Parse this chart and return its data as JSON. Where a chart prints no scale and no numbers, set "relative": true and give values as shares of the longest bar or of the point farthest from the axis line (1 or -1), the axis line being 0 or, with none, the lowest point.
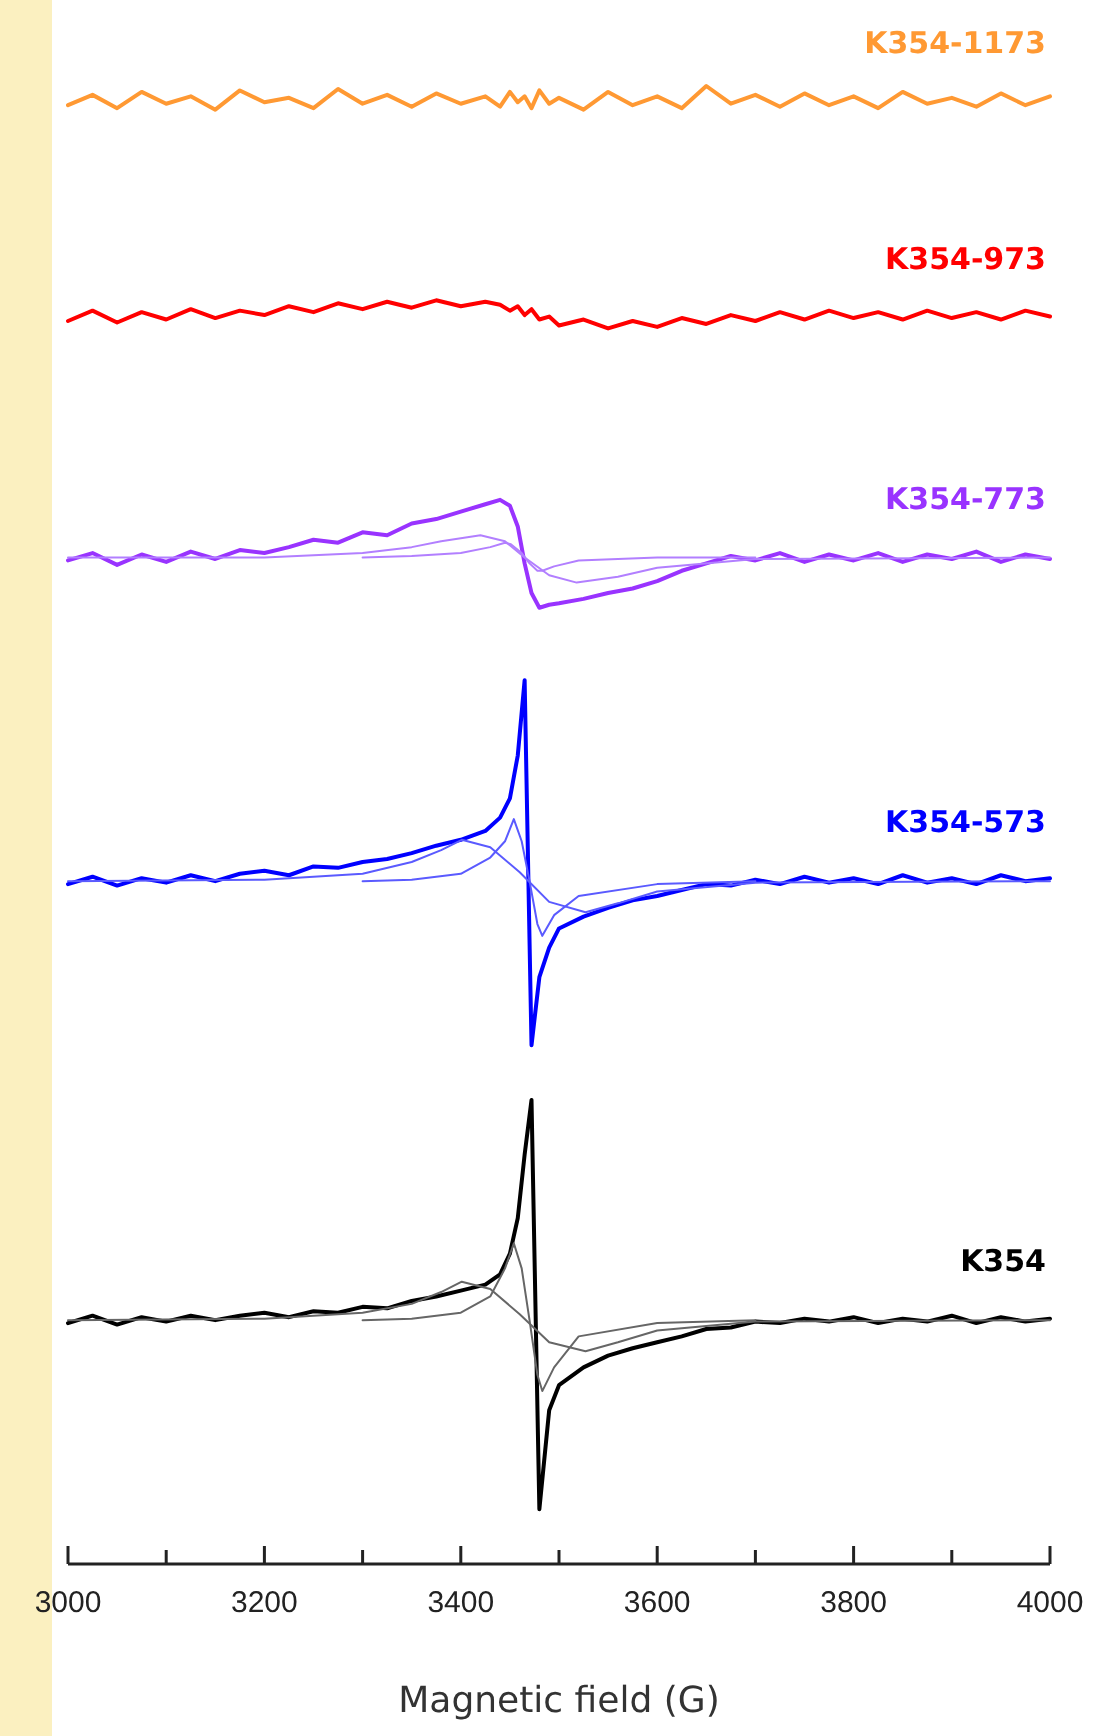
{
  "chart_data": {
    "type": "line",
    "relative": true,
    "xlabel": "Magnetic field (G)",
    "xlim": [
      3000,
      4000
    ],
    "xticks": [
      3000,
      {
        "value": 3100,
        "label": null
      },
      3200,
      {
        "value": 3300,
        "label": null
      },
      3400,
      {
        "value": 3500,
        "label": null
      },
      3600,
      {
        "value": 3700,
        "label": null
      },
      3800,
      {
        "value": 3900,
        "label": null
      },
      4000
    ],
    "x": [
      3000,
      3025,
      3050,
      3075,
      3100,
      3125,
      3150,
      3175,
      3200,
      3225,
      3250,
      3275,
      3300,
      3325,
      3350,
      3375,
      3400,
      3425,
      3440,
      3450,
      3458,
      3465,
      3472,
      3480,
      3490,
      3500,
      3525,
      3550,
      3575,
      3600,
      3625,
      3650,
      3675,
      3700,
      3725,
      3750,
      3775,
      3800,
      3825,
      3850,
      3875,
      3900,
      3925,
      3950,
      3975,
      4000
    ],
    "line_style": "solid",
    "marker": "none",
    "series": [
      {
        "name": "K354-1173",
        "color": "#ff9933",
        "values": [
          0.987,
          0.994,
          0.985,
          0.996,
          0.988,
          0.993,
          0.984,
          0.997,
          0.989,
          0.992,
          0.985,
          0.998,
          0.988,
          0.994,
          0.986,
          0.995,
          0.988,
          0.993,
          0.986,
          0.996,
          0.989,
          0.993,
          0.985,
          0.997,
          0.988,
          0.992,
          0.984,
          0.996,
          0.987,
          0.993,
          0.985,
          1.0,
          0.988,
          0.994,
          0.986,
          0.995,
          0.987,
          0.993,
          0.985,
          0.996,
          0.988,
          0.992,
          0.986,
          0.995,
          0.987,
          0.993
        ]
      },
      {
        "name": "K354-973",
        "color": "#ff0000",
        "values": [
          0.841,
          0.848,
          0.84,
          0.847,
          0.842,
          0.849,
          0.843,
          0.848,
          0.845,
          0.851,
          0.847,
          0.853,
          0.849,
          0.854,
          0.85,
          0.855,
          0.851,
          0.854,
          0.852,
          0.848,
          0.851,
          0.845,
          0.849,
          0.842,
          0.844,
          0.838,
          0.842,
          0.836,
          0.841,
          0.837,
          0.843,
          0.839,
          0.845,
          0.841,
          0.847,
          0.842,
          0.848,
          0.843,
          0.847,
          0.842,
          0.848,
          0.843,
          0.847,
          0.842,
          0.848,
          0.844
        ]
      },
      {
        "name": "K354-773",
        "color": "#9933ff",
        "values": [
          0.679,
          0.684,
          0.676,
          0.683,
          0.678,
          0.685,
          0.68,
          0.686,
          0.684,
          0.688,
          0.693,
          0.691,
          0.698,
          0.696,
          0.704,
          0.707,
          0.712,
          0.717,
          0.72,
          0.716,
          0.702,
          0.677,
          0.657,
          0.647,
          0.649,
          0.65,
          0.653,
          0.657,
          0.66,
          0.665,
          0.672,
          0.677,
          0.682,
          0.679,
          0.684,
          0.678,
          0.683,
          0.679,
          0.684,
          0.678,
          0.683,
          0.68,
          0.685,
          0.678,
          0.683,
          0.68
        ]
      },
      {
        "color": "#b27fff",
        "x": [
          3000,
          3200,
          3300,
          3350,
          3380,
          3420,
          3445,
          3465,
          3490,
          3518,
          3560,
          3600,
          3700,
          4000
        ],
        "values": [
          0.681,
          0.681,
          0.684,
          0.688,
          0.692,
          0.696,
          0.692,
          0.681,
          0.669,
          0.664,
          0.668,
          0.674,
          0.68,
          0.681
        ]
      },
      {
        "color": "#b27fff",
        "x": [
          3300,
          3350,
          3400,
          3430,
          3445,
          3451,
          3462,
          3470,
          3478,
          3483,
          3495,
          3520,
          3600,
          3700
        ],
        "values": [
          0.681,
          0.682,
          0.684,
          0.688,
          0.691,
          0.69,
          0.684,
          0.677,
          0.672,
          0.672,
          0.675,
          0.679,
          0.681,
          0.681
        ]
      },
      {
        "name": "K354-573",
        "color": "#0000ff",
        "values": [
          0.46,
          0.465,
          0.459,
          0.464,
          0.461,
          0.466,
          0.462,
          0.467,
          0.469,
          0.466,
          0.472,
          0.471,
          0.475,
          0.477,
          0.481,
          0.486,
          0.49,
          0.496,
          0.505,
          0.518,
          0.547,
          0.598,
          0.351,
          0.397,
          0.417,
          0.43,
          0.438,
          0.444,
          0.449,
          0.452,
          0.456,
          0.46,
          0.459,
          0.463,
          0.46,
          0.465,
          0.461,
          0.464,
          0.46,
          0.466,
          0.461,
          0.464,
          0.46,
          0.466,
          0.462,
          0.464
        ]
      },
      {
        "color": "#5a5aff",
        "x": [
          3000,
          3200,
          3300,
          3350,
          3380,
          3401,
          3430,
          3460,
          3490,
          3527,
          3560,
          3600,
          3700,
          4000
        ],
        "values": [
          0.462,
          0.463,
          0.467,
          0.475,
          0.483,
          0.49,
          0.485,
          0.468,
          0.448,
          0.441,
          0.447,
          0.455,
          0.461,
          0.462
        ]
      },
      {
        "color": "#5a5aff",
        "x": [
          3300,
          3350,
          3400,
          3430,
          3445,
          3454,
          3462,
          3470,
          3478,
          3483,
          3495,
          3520,
          3600,
          3700
        ],
        "values": [
          0.462,
          0.463,
          0.467,
          0.478,
          0.489,
          0.504,
          0.489,
          0.462,
          0.433,
          0.425,
          0.439,
          0.452,
          0.46,
          0.462
        ]
      },
      {
        "name": "K354",
        "color": "#000000",
        "values": [
          0.163,
          0.168,
          0.162,
          0.167,
          0.164,
          0.168,
          0.165,
          0.168,
          0.17,
          0.167,
          0.171,
          0.17,
          0.174,
          0.173,
          0.178,
          0.181,
          0.185,
          0.189,
          0.196,
          0.21,
          0.234,
          0.277,
          0.314,
          0.037,
          0.104,
          0.121,
          0.133,
          0.141,
          0.146,
          0.15,
          0.154,
          0.159,
          0.16,
          0.164,
          0.163,
          0.166,
          0.164,
          0.167,
          0.163,
          0.166,
          0.164,
          0.168,
          0.163,
          0.167,
          0.164,
          0.166
        ]
      },
      {
        "color": "#666666",
        "x": [
          3000,
          3200,
          3300,
          3350,
          3380,
          3401,
          3430,
          3460,
          3490,
          3527,
          3560,
          3600,
          3700,
          4000
        ],
        "values": [
          0.165,
          0.166,
          0.17,
          0.176,
          0.184,
          0.191,
          0.186,
          0.169,
          0.15,
          0.144,
          0.15,
          0.158,
          0.164,
          0.165
        ]
      },
      {
        "color": "#666666",
        "x": [
          3300,
          3350,
          3400,
          3430,
          3445,
          3454,
          3462,
          3470,
          3478,
          3483,
          3495,
          3520,
          3600,
          3700
        ],
        "values": [
          0.165,
          0.166,
          0.17,
          0.181,
          0.2,
          0.217,
          0.2,
          0.165,
          0.128,
          0.117,
          0.133,
          0.154,
          0.163,
          0.165
        ]
      }
    ]
  }
}
